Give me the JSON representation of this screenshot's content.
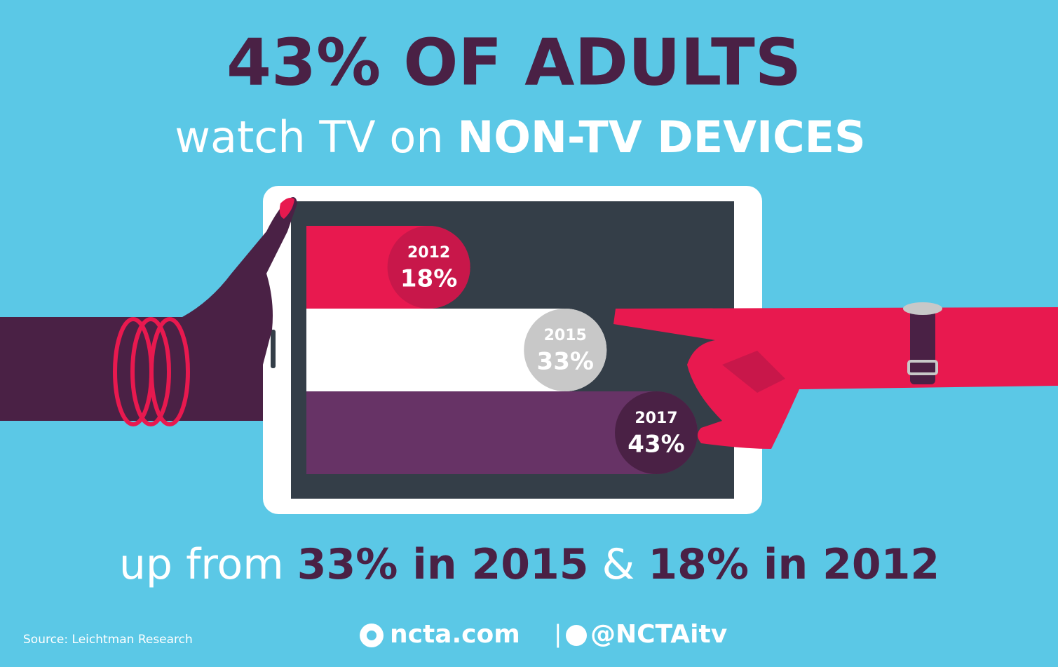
{
  "headline": "43% OF ADULTS",
  "subtitle": {
    "plain": "watch TV on",
    "bold": "NON-TV DEVICES"
  },
  "footnote": {
    "plain": "up from",
    "first": "33% in 2015",
    "joiner": "&",
    "second": "18% in 2012"
  },
  "source": "Source: Leichtman Research",
  "footer": {
    "site": "ncta.com",
    "separator": "|",
    "handle": "@NCTAitv"
  },
  "chart_data": {
    "type": "bar",
    "orientation": "horizontal",
    "categories": [
      "2012",
      "2015",
      "2017"
    ],
    "values": [
      18,
      33,
      43
    ],
    "value_labels": [
      "18%",
      "33%",
      "43%"
    ],
    "colors": [
      "#e8194f",
      "#ffffff",
      "#673366"
    ],
    "badge_colors": [
      "#c8174a",
      "#c8c8c8",
      "#4a2145"
    ]
  }
}
